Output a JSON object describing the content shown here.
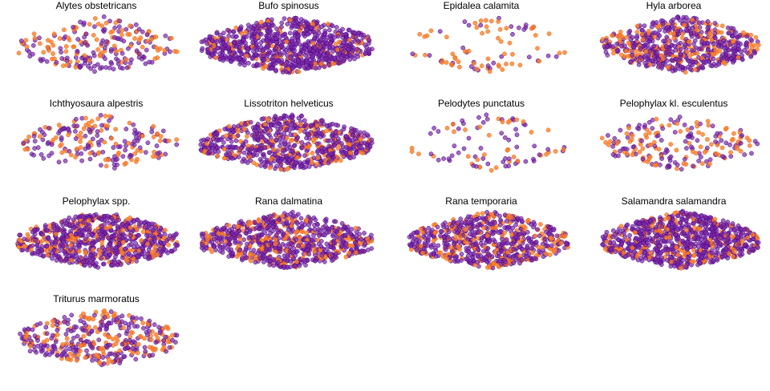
{
  "chart_data": {
    "type": "scatter",
    "layout": "small-multiples",
    "axes_visible": false,
    "grid": false,
    "legend": "none",
    "colors": {
      "purple": "#7B2AA8",
      "orange": "#FF7F27",
      "outline_purple": "#4B0082",
      "outline_orange": "#E0661A"
    },
    "panels": [
      {
        "title": "Alytes obstetricans",
        "n_points": 230,
        "orange_share": 0.45,
        "shape": "band"
      },
      {
        "title": "Bufo spinosus",
        "n_points": 900,
        "orange_share": 0.15,
        "shape": "blob"
      },
      {
        "title": "Epidalea calamita",
        "n_points": 85,
        "orange_share": 0.55,
        "shape": "ring"
      },
      {
        "title": "Hyla arborea",
        "n_points": 650,
        "orange_share": 0.3,
        "shape": "blob"
      },
      {
        "title": "Ichthyosaura alpestris",
        "n_points": 200,
        "orange_share": 0.45,
        "shape": "band"
      },
      {
        "title": "Lissotriton helveticus",
        "n_points": 750,
        "orange_share": 0.25,
        "shape": "blob"
      },
      {
        "title": "Pelodytes punctatus",
        "n_points": 90,
        "orange_share": 0.45,
        "shape": "ring"
      },
      {
        "title": "Pelophylax kl. esculentus",
        "n_points": 200,
        "orange_share": 0.45,
        "shape": "band"
      },
      {
        "title": "Pelophylax spp.",
        "n_points": 800,
        "orange_share": 0.25,
        "shape": "blob"
      },
      {
        "title": "Rana dalmatina",
        "n_points": 800,
        "orange_share": 0.25,
        "shape": "blob"
      },
      {
        "title": "Rana temporaria",
        "n_points": 700,
        "orange_share": 0.3,
        "shape": "blob"
      },
      {
        "title": "Salamandra salamandra",
        "n_points": 900,
        "orange_share": 0.2,
        "shape": "blob"
      },
      {
        "title": "Triturus marmoratus",
        "n_points": 380,
        "orange_share": 0.4,
        "shape": "band"
      }
    ]
  }
}
